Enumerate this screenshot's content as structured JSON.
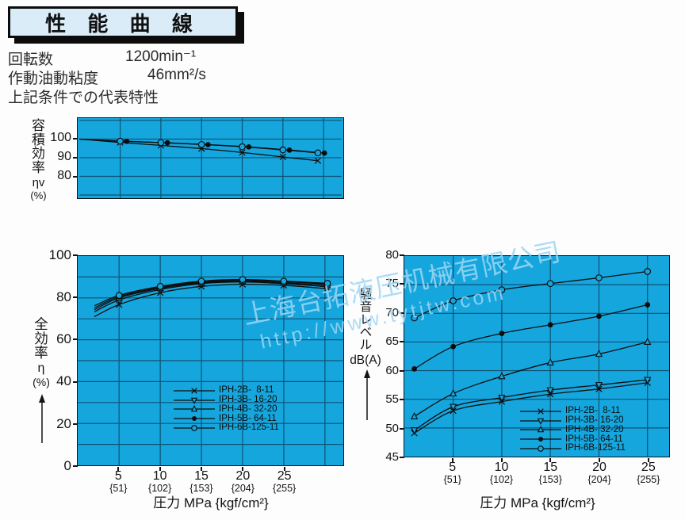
{
  "title": "性 能 曲 線",
  "conditions": {
    "rows": [
      {
        "label": "回転数",
        "value": "1200min⁻¹"
      },
      {
        "label": "作動油動粘度",
        "value": "46mm²/s"
      }
    ],
    "note": "上記条件での代表特性"
  },
  "watermark": {
    "line1": "上海台拓液压机械有限公司",
    "line2": "http://www.tytjtw.com"
  },
  "pressure_axis": {
    "label": "圧力 MPa {kgf/cm²}",
    "ticks": [
      {
        "mpa": 5,
        "kgf": "{51}"
      },
      {
        "mpa": 10,
        "kgf": "{102}"
      },
      {
        "mpa": 15,
        "kgf": "{153}"
      },
      {
        "mpa": 20,
        "kgf": "{204}"
      },
      {
        "mpa": 25,
        "kgf": "{255}"
      }
    ]
  },
  "models": [
    {
      "name": "IPH-2B-  8-11",
      "marker": "x"
    },
    {
      "name": "IPH-3B- 16-20",
      "marker": "tri-down"
    },
    {
      "name": "IPH-4B- 32-20",
      "marker": "tri-up"
    },
    {
      "name": "IPH-5B- 64-11",
      "marker": "dot"
    },
    {
      "name": "IPH-6B-125-11",
      "marker": "circle"
    }
  ],
  "chart_data": [
    {
      "id": "volumetric",
      "type": "line",
      "name": "容積効率 ηv (%) vs 圧力 MPa",
      "ylabel_main": "容積効率",
      "ylabel_sym": "ηv",
      "ylabel_unit": "(%)",
      "xlim": [
        0,
        32.2
      ],
      "ylim": [
        68.3,
        111.25
      ],
      "xgrid": [
        5,
        10,
        15,
        20,
        25,
        30
      ],
      "ygrid": [
        70,
        80,
        90,
        100,
        110
      ],
      "yticks": [
        100,
        90,
        80
      ],
      "series": [
        {
          "name": "IPH-2B-  8-11",
          "marker": "x",
          "marker_from": 1,
          "x": [
            0,
            5,
            10,
            15,
            20,
            25,
            29.3
          ],
          "y": [
            100,
            98.2,
            96.6,
            94.9,
            92.8,
            90.4,
            88.4
          ]
        },
        {
          "name": "IPH-5B- 64-11",
          "marker": "dot",
          "marker_from": 1,
          "x": [
            0,
            5.8,
            10.8,
            15.8,
            20.8,
            25.8,
            30.1
          ],
          "y": [
            100,
            98.8,
            98.0,
            97.0,
            95.8,
            94.1,
            92.5
          ]
        },
        {
          "name": "IPH-6B-125-11",
          "marker": "circle",
          "marker_from": 1,
          "x": [
            0,
            5,
            10,
            15,
            20,
            25,
            29.3
          ],
          "y": [
            100,
            98.9,
            98.1,
            97.1,
            95.9,
            94.2,
            92.6
          ]
        }
      ]
    },
    {
      "id": "overall",
      "type": "line",
      "name": "全効率 η (%) vs 圧力 MPa",
      "ylabel_main": "全効率",
      "ylabel_sym": "η",
      "ylabel_unit": "(%)",
      "xlim": [
        0,
        32.2
      ],
      "ylim": [
        0,
        100
      ],
      "xgrid": [
        5,
        10,
        15,
        20,
        25,
        30
      ],
      "ygrid": [
        10,
        20,
        30,
        40,
        50,
        60,
        70,
        80,
        90
      ],
      "yticks": [
        100,
        80,
        60,
        40,
        20,
        0
      ],
      "has_xticks": true,
      "legend": true,
      "series": [
        {
          "name": "IPH-2B-  8-11",
          "marker": "x",
          "marker_from": 1,
          "x": [
            2,
            5,
            10,
            15,
            20,
            25,
            30.3
          ],
          "y": [
            71,
            76.8,
            82.5,
            85.5,
            86.5,
            86,
            84.4
          ]
        },
        {
          "name": "IPH-3B- 16-20",
          "marker": "tri-down",
          "marker_from": 1,
          "x": [
            2,
            5,
            10,
            15,
            20,
            25,
            30.3
          ],
          "y": [
            73.3,
            79,
            84,
            86.8,
            87.6,
            86.8,
            85.3
          ]
        },
        {
          "name": "IPH-4B- 32-20",
          "marker": "tri-up",
          "marker_from": 1,
          "x": [
            2,
            5,
            10,
            15,
            20,
            25,
            30.3
          ],
          "y": [
            74.3,
            80,
            84.6,
            87.2,
            88,
            87.2,
            86
          ]
        },
        {
          "name": "IPH-5B- 64-11",
          "marker": "dot",
          "marker_from": 1,
          "x": [
            2,
            5,
            10,
            15,
            20,
            25,
            30.3
          ],
          "y": [
            75.2,
            80.6,
            85,
            87.6,
            88.4,
            87.7,
            86.6
          ]
        },
        {
          "name": "IPH-6B-125-11",
          "marker": "circle",
          "marker_from": 1,
          "x": [
            2,
            5,
            10,
            15,
            20,
            25,
            30.3
          ],
          "y": [
            76.2,
            81.2,
            85.5,
            88,
            88.8,
            88,
            87
          ]
        }
      ]
    },
    {
      "id": "noise",
      "type": "line",
      "name": "騒音レベル dB(A) vs 圧力 MPa",
      "ylabel_main": "騒音レベル",
      "ylabel_sym": "dB(A)",
      "xlim": [
        0,
        27.2
      ],
      "ylim": [
        45,
        80
      ],
      "xgrid": [
        5,
        10,
        15,
        20,
        25
      ],
      "ygrid": [
        50,
        55,
        60,
        65,
        70,
        75
      ],
      "yticks": [
        80,
        75,
        70,
        65,
        60,
        55,
        50,
        45
      ],
      "has_xticks": true,
      "legend": true,
      "series": [
        {
          "name": "IPH-2B-  8-11",
          "marker": "x",
          "marker_from": 0,
          "x": [
            1,
            5,
            10,
            15,
            20,
            25
          ],
          "y": [
            49.1,
            53,
            54.6,
            55.9,
            56.8,
            57.9
          ]
        },
        {
          "name": "IPH-3B- 16-20",
          "marker": "tri-down",
          "marker_from": 0,
          "x": [
            1,
            5,
            10,
            15,
            20,
            25
          ],
          "y": [
            49.6,
            53.7,
            55.3,
            56.6,
            57.5,
            58.4
          ]
        },
        {
          "name": "IPH-4B- 32-20",
          "marker": "tri-up",
          "marker_from": 0,
          "x": [
            1,
            5,
            10,
            15,
            20,
            25
          ],
          "y": [
            52,
            56,
            59,
            61.4,
            62.9,
            65
          ]
        },
        {
          "name": "IPH-5B- 64-11",
          "marker": "dot",
          "marker_from": 0,
          "x": [
            1,
            5,
            10,
            15,
            20,
            25
          ],
          "y": [
            60.3,
            64.2,
            66.5,
            68,
            69.5,
            71.5
          ]
        },
        {
          "name": "IPH-6B-125-11",
          "marker": "circle",
          "marker_from": 0,
          "x": [
            1,
            5,
            10,
            15,
            20,
            25
          ],
          "y": [
            69.2,
            72.2,
            74.1,
            75.2,
            76.2,
            77.3
          ]
        }
      ]
    }
  ],
  "colors": {
    "chart_bg": "#16a6de",
    "gridline": "#0c5272",
    "curve": "#0d0d0d",
    "title_box_bg": "#d9ecf8",
    "watermark": "#9dd4ef"
  }
}
